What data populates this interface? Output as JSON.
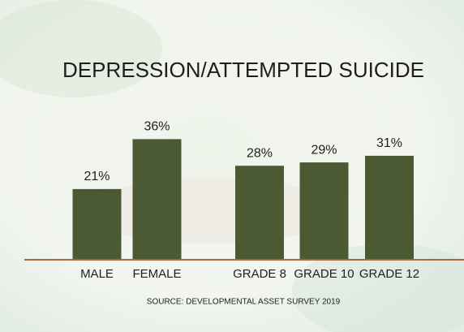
{
  "chart_data": {
    "type": "bar",
    "title": "DEPRESSION/ATTEMPTED SUICIDE",
    "categories": [
      "MALE",
      "FEMALE",
      "GRADE 8",
      "GRADE 10",
      "GRADE 12"
    ],
    "values": [
      21,
      36,
      28,
      29,
      31
    ],
    "value_labels": [
      "21%",
      "36%",
      "28%",
      "29%",
      "31%"
    ],
    "color": "#4b5a33",
    "source": "SOURCE: DEVELOPMENTAL ASSET SURVEY 2019"
  }
}
